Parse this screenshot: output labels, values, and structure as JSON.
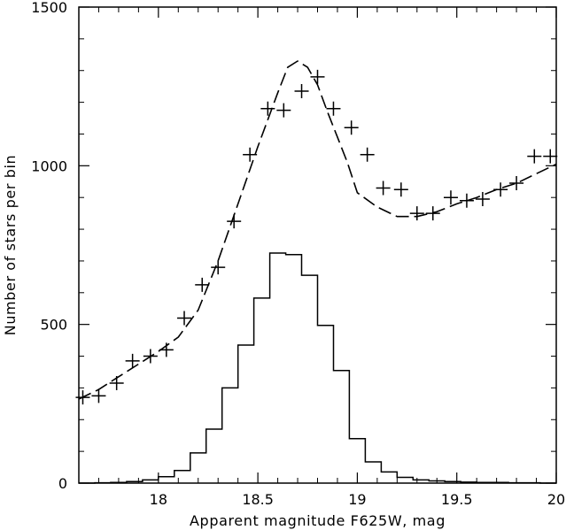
{
  "chart_data": {
    "type": "line",
    "title": "",
    "xlabel": "Apparent magnitude F625W, mag",
    "ylabel": "Number of stars per bin",
    "xlim": [
      17.6,
      20.0
    ],
    "ylim": [
      0,
      1500
    ],
    "x_ticks": [
      18,
      18.5,
      19,
      19.5,
      20
    ],
    "x_tick_labels": [
      "18",
      "18.5",
      "19",
      "19.5",
      "20"
    ],
    "y_ticks": [
      0,
      500,
      1000,
      1500
    ],
    "y_tick_labels": [
      "0",
      "500",
      "1000",
      "1500"
    ],
    "grid": false,
    "legend": "none",
    "series": [
      {
        "style": "crosses",
        "x": [
          17.62,
          17.7,
          17.79,
          17.87,
          17.96,
          18.04,
          18.13,
          18.22,
          18.3,
          18.38,
          18.46,
          18.55,
          18.63,
          18.72,
          18.8,
          18.88,
          18.97,
          19.05,
          19.13,
          19.22,
          19.3,
          19.38,
          19.47,
          19.55,
          19.63,
          19.72,
          19.8,
          19.89,
          19.97
        ],
        "y": [
          270,
          275,
          315,
          385,
          400,
          420,
          520,
          625,
          680,
          825,
          1035,
          1180,
          1175,
          1235,
          1280,
          1180,
          1120,
          1035,
          930,
          925,
          850,
          850,
          900,
          890,
          895,
          925,
          945,
          1030,
          1030
        ]
      },
      {
        "style": "dashed",
        "x": [
          17.6,
          17.7,
          17.8,
          17.9,
          18.0,
          18.1,
          18.2,
          18.3,
          18.4,
          18.5,
          18.6,
          18.65,
          18.7,
          18.75,
          18.8,
          18.85,
          18.9,
          18.95,
          19.0,
          19.1,
          19.2,
          19.3,
          19.4,
          19.5,
          19.6,
          19.7,
          19.8,
          19.9,
          20.0
        ],
        "y": [
          265,
          295,
          335,
          375,
          415,
          460,
          545,
          700,
          880,
          1060,
          1230,
          1310,
          1330,
          1310,
          1255,
          1170,
          1090,
          1010,
          915,
          870,
          840,
          840,
          855,
          880,
          900,
          925,
          945,
          975,
          1005
        ]
      },
      {
        "style": "histogram",
        "bin_edges": [
          17.6,
          17.68,
          17.76,
          17.84,
          17.92,
          18.0,
          18.08,
          18.16,
          18.24,
          18.32,
          18.4,
          18.48,
          18.56,
          18.64,
          18.72,
          18.8,
          18.88,
          18.96,
          19.04,
          19.12,
          19.2,
          19.28,
          19.36,
          19.44,
          19.52,
          19.6,
          19.68,
          19.76,
          19.84,
          19.92,
          20.0
        ],
        "values": [
          0,
          1,
          2,
          5,
          10,
          20,
          40,
          95,
          170,
          300,
          435,
          583,
          725,
          720,
          655,
          497,
          355,
          140,
          67,
          35,
          18,
          10,
          7,
          5,
          3,
          2,
          2,
          1,
          1,
          0
        ]
      }
    ]
  }
}
